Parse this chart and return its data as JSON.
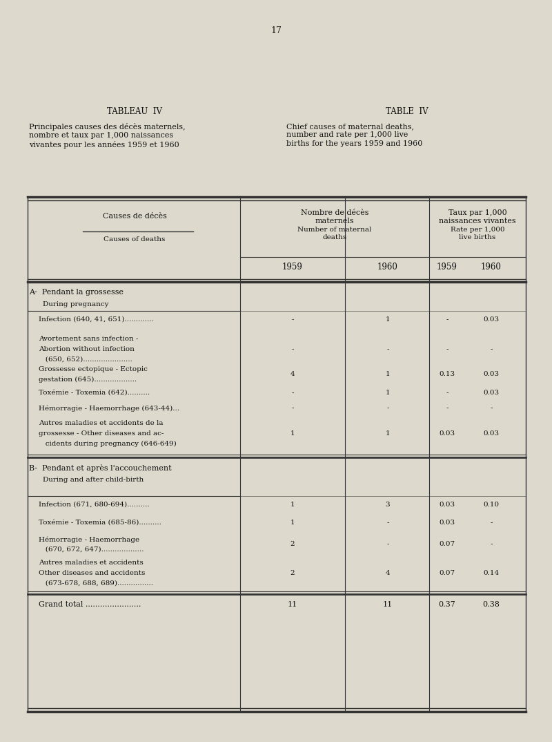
{
  "page_number": "17",
  "tableau_title_fr": "TABLEAU  IV",
  "tableau_title_en": "TABLE  IV",
  "subtitle_fr": "Principales causes des décès maternels,\nnombre et taux par 1,000 naissances\nvivantes pour les années 1959 et 1960",
  "subtitle_en": "Chief causes of maternal deaths,\nnumber and rate per 1,000 live\nbirths for the years 1959 and 1960",
  "col_header_fr1": "Nombre de décès\nmaternels",
  "col_header_en1": "Number of maternal\ndeaths",
  "col_header_fr2": "Taux par 1,000\nnaissances vivantes",
  "col_header_en2": "Rate per 1,000\nlive births",
  "col_header_left_fr": "Causes de décès",
  "col_header_left_en": "Causes of deaths",
  "section_a_fr": "A-  Pendant la grossesse",
  "section_a_en": "During pregnancy",
  "section_b_fr": "B-  Pendant et après l'accouchement",
  "section_b_en": "During and after child-birth",
  "sec_a_rows": [
    {
      "lines": [
        "Infection (640, 41, 651)............."
      ],
      "v1959": "-",
      "v1960": "1",
      "r1959": "-",
      "r1960": "0.03"
    },
    {
      "lines": [
        "Avortement sans infection -",
        "Abortion without infection",
        "   (650, 652)......................"
      ],
      "v1959": "-",
      "v1960": "-",
      "r1959": "-",
      "r1960": "-"
    },
    {
      "lines": [
        "Grossesse ectopique - Ectopic",
        "gestation (645)..................."
      ],
      "v1959": "4",
      "v1960": "1",
      "r1959": "0.13",
      "r1960": "0.03"
    },
    {
      "lines": [
        "Toxémie - Toxemia (642).........."
      ],
      "v1959": "-",
      "v1960": "1",
      "r1959": "-",
      "r1960": "0.03"
    },
    {
      "lines": [
        "Hémorragie - Haemorrhage (643-44)..."
      ],
      "v1959": "-",
      "v1960": "-",
      "r1959": "-",
      "r1960": "-"
    },
    {
      "lines": [
        "Autres maladies et accidents de la",
        "grossesse - Other diseases and ac-",
        "   cidents during pregnancy (646-649)"
      ],
      "v1959": "1",
      "v1960": "1",
      "r1959": "0.03",
      "r1960": "0.03"
    }
  ],
  "sec_b_rows": [
    {
      "lines": [
        "Infection (671, 680-694).........."
      ],
      "v1959": "1",
      "v1960": "3",
      "r1959": "0.03",
      "r1960": "0.10"
    },
    {
      "lines": [
        "Toxémie - Toxemia (685-86).........."
      ],
      "v1959": "1",
      "v1960": "-",
      "r1959": "0.03",
      "r1960": "-"
    },
    {
      "lines": [
        "Hémorragie - Haemorrhage",
        "   (670, 672, 647)..................."
      ],
      "v1959": "2",
      "v1960": "-",
      "r1959": "0.07",
      "r1960": "-"
    },
    {
      "lines": [
        "Autres maladies et accidents",
        "Other diseases and accidents",
        "   (673-678, 688, 689)................"
      ],
      "v1959": "2",
      "v1960": "4",
      "r1959": "0.07",
      "r1960": "0.14"
    }
  ],
  "grand_total_label": "Grand total .......................",
  "grand_total_v1959": "11",
  "grand_total_v1960": "11",
  "grand_total_r1959": "0.37",
  "grand_total_r1960": "0.38",
  "bg_color": "#ddd9cc",
  "text_color": "#111111",
  "line_color": "#333333"
}
